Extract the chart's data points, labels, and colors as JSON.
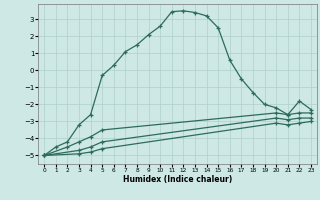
{
  "xlabel": "Humidex (Indice chaleur)",
  "xlim": [
    -0.5,
    23.5
  ],
  "ylim": [
    -5.5,
    3.9
  ],
  "xticks": [
    0,
    1,
    2,
    3,
    4,
    5,
    6,
    7,
    8,
    9,
    10,
    11,
    12,
    13,
    14,
    15,
    16,
    17,
    18,
    19,
    20,
    21,
    22,
    23
  ],
  "yticks": [
    -5,
    -4,
    -3,
    -2,
    -1,
    0,
    1,
    2,
    3
  ],
  "bg_color": "#cde8e5",
  "line_color": "#2d6b5e",
  "grid_color": "#afd0cc",
  "curve1_x": [
    0,
    1,
    2,
    3,
    4,
    5,
    6,
    7,
    8,
    9,
    10,
    11,
    12,
    13,
    14,
    15,
    16,
    17,
    18,
    19,
    20,
    21,
    22,
    23
  ],
  "curve1_y": [
    -5.0,
    -4.5,
    -4.2,
    -3.2,
    -2.6,
    -0.3,
    0.3,
    1.1,
    1.5,
    2.1,
    2.6,
    3.45,
    3.5,
    3.4,
    3.2,
    2.5,
    0.6,
    -0.5,
    -1.3,
    -2.0,
    -2.2,
    -2.6,
    -1.8,
    -2.3
  ],
  "line1_x": [
    0,
    2,
    3,
    4,
    5,
    20,
    21,
    22,
    23
  ],
  "line1_y": [
    -5.0,
    -4.5,
    -4.2,
    -3.9,
    -3.5,
    -2.5,
    -2.6,
    -2.5,
    -2.5
  ],
  "line2_x": [
    0,
    3,
    4,
    5,
    20,
    21,
    22,
    23
  ],
  "line2_y": [
    -5.0,
    -4.7,
    -4.5,
    -4.2,
    -2.8,
    -2.9,
    -2.8,
    -2.8
  ],
  "line3_x": [
    0,
    3,
    4,
    5,
    20,
    21,
    22,
    23
  ],
  "line3_y": [
    -5.0,
    -4.9,
    -4.8,
    -4.6,
    -3.1,
    -3.2,
    -3.1,
    -3.0
  ]
}
